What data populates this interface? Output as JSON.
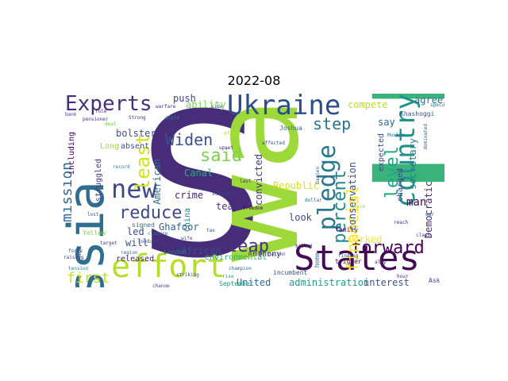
{
  "figure": {
    "title": "2022-08"
  },
  "words": [
    {
      "text": "S",
      "color": "#472c7a"
    },
    {
      "text": "U",
      "color": "#3ab37a"
    },
    {
      "text": "wa",
      "color": "#9ed93a"
    },
    {
      "text": "States",
      "color": "#440c55"
    },
    {
      "text": "Russia",
      "color": "#2f6e8e"
    },
    {
      "text": "effort",
      "color": "#b5de2b"
    },
    {
      "text": "Ukraine",
      "color": "#2b4f8a"
    },
    {
      "text": "country",
      "color": "#20928c"
    },
    {
      "text": "new",
      "color": "#3e4a89"
    },
    {
      "text": "Experts",
      "color": "#472d7b"
    },
    {
      "text": "pledge",
      "color": "#2a788e"
    },
    {
      "text": "forward",
      "color": "#440154"
    },
    {
      "text": "reduce",
      "color": "#3f4889"
    },
    {
      "text": "mission",
      "color": "#31688e"
    },
    {
      "text": "percent",
      "color": "#23888e"
    },
    {
      "text": "leap",
      "color": "#46337e"
    },
    {
      "text": "least",
      "color": "#d2e21b"
    },
    {
      "text": "level",
      "color": "#22a785"
    },
    {
      "text": "said",
      "color": "#7ad151"
    },
    {
      "text": "step",
      "color": "#2c728e"
    },
    {
      "text": "Widen",
      "color": "#3b518b"
    },
    {
      "text": "first",
      "color": "#c8e020"
    },
    {
      "text": "financial",
      "color": "#fde725"
    },
    {
      "text": "administration",
      "color": "#1f9e89"
    },
    {
      "text": "interest",
      "color": "#39568c"
    },
    {
      "text": "United",
      "color": "#2f6c8e"
    },
    {
      "text": "Democratic",
      "color": "#482878"
    },
    {
      "text": "conservation",
      "color": "#3e4c8a"
    },
    {
      "text": "secretary",
      "color": "#25838e"
    },
    {
      "text": "agreeing",
      "color": "#2e6f8e"
    },
    {
      "text": "compete",
      "color": "#c2df23"
    },
    {
      "text": "convicted",
      "color": "#453882"
    },
    {
      "text": "crime",
      "color": "#482576"
    },
    {
      "text": "Canal",
      "color": "#29af7f"
    },
    {
      "text": "African",
      "color": "#3d4e8a"
    },
    {
      "text": "American",
      "color": "#2d708e"
    },
    {
      "text": "ability",
      "color": "#7ad151"
    },
    {
      "text": "bolster",
      "color": "#3b528b"
    },
    {
      "text": "push",
      "color": "#414487"
    },
    {
      "text": "Ghafoor",
      "color": "#355f8d"
    },
    {
      "text": "team",
      "color": "#472f7d"
    },
    {
      "text": "worked",
      "color": "#fde725"
    },
    {
      "text": "look",
      "color": "#3e4989"
    },
    {
      "text": "man",
      "color": "#440154"
    },
    {
      "text": "say",
      "color": "#31688e"
    },
    {
      "text": "expected",
      "color": "#404688"
    },
    {
      "text": "will",
      "color": "#3b528b"
    },
    {
      "text": "led",
      "color": "#3e4a89"
    },
    {
      "text": "including",
      "color": "#440154"
    },
    {
      "text": "Long",
      "color": "#9fda3a"
    },
    {
      "text": "struggled",
      "color": "#453781"
    },
    {
      "text": "Republic",
      "color": "#d8e219"
    },
    {
      "text": "China",
      "color": "#287d8e"
    },
    {
      "text": "environmental",
      "color": "#26ad81"
    },
    {
      "text": "released",
      "color": "#482677"
    },
    {
      "text": "charged",
      "color": "#414487"
    },
    {
      "text": "absent",
      "color": "#3b528b"
    },
    {
      "text": "Khashoggi",
      "color": "#38598c"
    },
    {
      "text": "Anthony",
      "color": "#46327e"
    },
    {
      "text": "Yellow",
      "color": "#84d44b"
    },
    {
      "text": "London",
      "color": "#2a788e"
    },
    {
      "text": "September",
      "color": "#1f968b"
    },
    {
      "text": "incumbent",
      "color": "#3b528b"
    },
    {
      "text": "family",
      "color": "#481769"
    },
    {
      "text": "Joshua",
      "color": "#31688e"
    },
    {
      "text": "Now",
      "color": "#355f8d"
    },
    {
      "text": "home",
      "color": "#2c728e"
    },
    {
      "text": "trigger",
      "color": "#440154"
    },
    {
      "text": "Ask",
      "color": "#3e4a89"
    },
    {
      "text": "Afghan",
      "color": "#b5de2b"
    },
    {
      "text": "last",
      "color": "#46327e"
    },
    {
      "text": "signed",
      "color": "#306a8e"
    },
    {
      "text": "closure",
      "color": "#2a788e"
    },
    {
      "text": "upset",
      "color": "#482475"
    },
    {
      "text": "military",
      "color": "#3f4788"
    },
    {
      "text": "one",
      "color": "#d0e11c"
    },
    {
      "text": "champion",
      "color": "#2c728e"
    },
    {
      "text": "striking",
      "color": "#3b528b"
    },
    {
      "text": "change",
      "color": "#414487"
    },
    {
      "text": "reach",
      "color": "#482878"
    },
    {
      "text": "region",
      "color": "#31688e"
    },
    {
      "text": "raising",
      "color": "#3e4989"
    },
    {
      "text": "target",
      "color": "#453882"
    },
    {
      "text": "style",
      "color": "#24878e"
    },
    {
      "text": "conduct",
      "color": "#3b528b"
    },
    {
      "text": "warfare",
      "color": "#472d7b"
    },
    {
      "text": "Darien",
      "color": "#38598c"
    },
    {
      "text": "force",
      "color": "#3e4c8a"
    },
    {
      "text": "rule",
      "color": "#481b6d"
    },
    {
      "text": "Muslim",
      "color": "#2d708e"
    },
    {
      "text": "dominated",
      "color": "#3b528b"
    },
    {
      "text": "deal",
      "color": "#6ece58"
    },
    {
      "text": "bank",
      "color": "#404588"
    },
    {
      "text": "Strong",
      "color": "#463480"
    },
    {
      "text": "speculation",
      "color": "#2a788e"
    },
    {
      "text": "finding",
      "color": "#3e4a89"
    },
    {
      "text": "tension",
      "color": "#23888e"
    },
    {
      "text": "pensioner",
      "color": "#472d7b"
    },
    {
      "text": "affected",
      "color": "#3b528b"
    },
    {
      "text": "side",
      "color": "#31688e"
    },
    {
      "text": "freedom",
      "color": "#440154"
    },
    {
      "text": "dollar",
      "color": "#2c728e"
    },
    {
      "text": "killed",
      "color": "#414487"
    },
    {
      "text": "voice",
      "color": "#9fda3a"
    },
    {
      "text": "clash",
      "color": "#453781"
    },
    {
      "text": "record",
      "color": "#25848e"
    },
    {
      "text": "wife",
      "color": "#3f4889"
    },
    {
      "text": "war",
      "color": "#2f6b8e"
    },
    {
      "text": "ally",
      "color": "#472f7d"
    },
    {
      "text": "tax",
      "color": "#3b528b"
    },
    {
      "text": "hour",
      "color": "#482071"
    },
    {
      "text": "lost",
      "color": "#38598c"
    },
    {
      "text": "rise",
      "color": "#1f9a8a"
    },
    {
      "text": "nation",
      "color": "#3e4a89"
    },
    {
      "text": "plan",
      "color": "#440154"
    },
    {
      "text": "wind",
      "color": "#2a788e"
    },
    {
      "text": "ran",
      "color": "#46327e"
    }
  ]
}
